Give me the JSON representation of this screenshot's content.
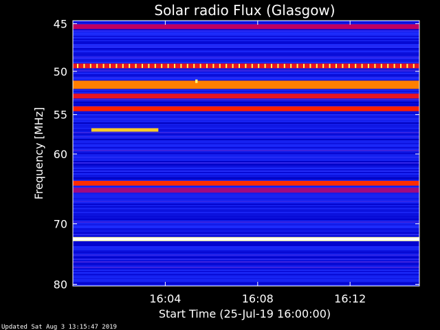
{
  "chart_data": {
    "type": "heatmap",
    "title": "Solar radio Flux (Glasgow)",
    "xlabel": "Start Time (25-Jul-19 16:00:00)",
    "ylabel": "Frequency [MHz]",
    "x_ticks": [
      "16:04",
      "16:08",
      "16:12"
    ],
    "x_tick_minutes": [
      4,
      8,
      12
    ],
    "xlim_minutes": [
      0,
      15
    ],
    "y_ticks": [
      45,
      50,
      55,
      60,
      70,
      80
    ],
    "ylim_mhz": [
      44.7,
      80.3
    ],
    "y_scale": "log",
    "colormap": [
      "#000060",
      "#0000c8",
      "#2030ff",
      "#c00060",
      "#ff2000",
      "#ff8000",
      "#ffff40",
      "#ffffff"
    ],
    "bands": [
      {
        "freq_mhz": 45.3,
        "intensity": 0.45
      },
      {
        "freq_mhz": 49.4,
        "intensity": 0.55
      },
      {
        "freq_mhz": 51.5,
        "intensity": 0.75
      },
      {
        "freq_mhz": 52.8,
        "intensity": 0.55
      },
      {
        "freq_mhz": 54.3,
        "intensity": 0.6
      },
      {
        "freq_mhz": 64.0,
        "intensity": 0.62
      },
      {
        "freq_mhz": 65.0,
        "intensity": 0.42
      },
      {
        "freq_mhz": 72.4,
        "intensity": 1.0
      }
    ],
    "bursts": [
      {
        "start_min": 0.8,
        "end_min": 3.7,
        "freq_mhz": 56.9,
        "intensity": 0.8
      },
      {
        "start_min": 5.3,
        "end_min": 5.4,
        "freq_mhz": 51.1,
        "intensity": 0.9
      }
    ]
  },
  "footer": {
    "updated": "Updated Sat Aug  3 13:15:47 2019"
  }
}
